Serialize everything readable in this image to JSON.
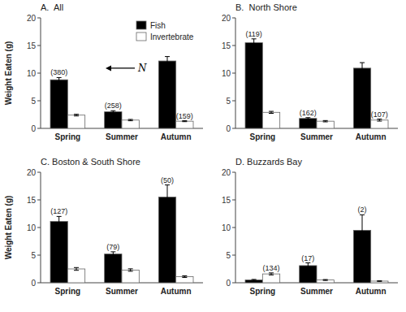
{
  "chart_data": [
    {
      "type": "bar",
      "title": "A.  All",
      "y_label": "Weight Eaten (g)",
      "categories": [
        "Spring",
        "Summer",
        "Autumn"
      ],
      "series": [
        {
          "name": "Fish",
          "color": "#000000",
          "values": [
            8.8,
            3.0,
            12.2
          ],
          "errors": [
            0.4,
            0.2,
            0.8
          ],
          "n_labels": [
            "(380)",
            "(258)",
            null
          ]
        },
        {
          "name": "Invertebrate",
          "color": "#ffffff",
          "values": [
            2.4,
            1.5,
            1.3
          ],
          "errors": [
            0.15,
            0.12,
            0.08
          ],
          "n_labels": [
            null,
            null,
            "(159)"
          ]
        }
      ],
      "ylim": [
        0,
        20
      ],
      "yticks": [
        0,
        5,
        10,
        15,
        20
      ],
      "grid": false,
      "legend": "upper right",
      "annotation": "N"
    },
    {
      "type": "bar",
      "title": "B.  North Shore",
      "categories": [
        "Spring",
        "Summer",
        "Autumn"
      ],
      "series": [
        {
          "name": "Fish",
          "color": "#000000",
          "values": [
            15.5,
            1.8,
            10.9
          ],
          "errors": [
            0.7,
            0.15,
            1.0
          ],
          "n_labels": [
            "(119)",
            "(162)",
            null
          ]
        },
        {
          "name": "Invertebrate",
          "color": "#ffffff",
          "values": [
            2.9,
            1.3,
            1.5
          ],
          "errors": [
            0.18,
            0.12,
            0.18
          ],
          "n_labels": [
            null,
            null,
            "(107)"
          ]
        }
      ],
      "ylim": [
        0,
        20
      ],
      "yticks": [
        0,
        5,
        10,
        15,
        20
      ],
      "grid": false,
      "legend": false
    },
    {
      "type": "bar",
      "title": "C. Boston & South Shore",
      "y_label": "Weight Eaten (g)",
      "categories": [
        "Spring",
        "Summer",
        "Autumn"
      ],
      "series": [
        {
          "name": "Fish",
          "color": "#000000",
          "values": [
            11.1,
            5.2,
            15.5
          ],
          "errors": [
            0.9,
            0.4,
            2.2
          ],
          "n_labels": [
            "(127)",
            "(79)",
            "(50)"
          ]
        },
        {
          "name": "Invertebrate",
          "color": "#ffffff",
          "values": [
            2.5,
            2.3,
            1.1
          ],
          "errors": [
            0.25,
            0.22,
            0.15
          ],
          "n_labels": [
            null,
            null,
            null
          ]
        }
      ],
      "ylim": [
        0,
        20
      ],
      "yticks": [
        0,
        5,
        10,
        15,
        20
      ],
      "grid": false,
      "legend": false
    },
    {
      "type": "bar",
      "title": "D. Buzzards Bay",
      "categories": [
        "Spring",
        "Summer",
        "Autumn"
      ],
      "series": [
        {
          "name": "Fish",
          "color": "#000000",
          "values": [
            0.5,
            3.1,
            9.5
          ],
          "errors": [
            0.1,
            0.5,
            2.8
          ],
          "n_labels": [
            null,
            "(17)",
            "(2)"
          ]
        },
        {
          "name": "Invertebrate",
          "color": "#ffffff",
          "values": [
            1.6,
            0.5,
            0.3
          ],
          "errors": [
            0.18,
            0.08,
            0.05
          ],
          "n_labels": [
            "(134)",
            null,
            null
          ]
        }
      ],
      "ylim": [
        0,
        20
      ],
      "yticks": [
        0,
        5,
        10,
        15,
        20
      ],
      "grid": false,
      "legend": false
    }
  ]
}
